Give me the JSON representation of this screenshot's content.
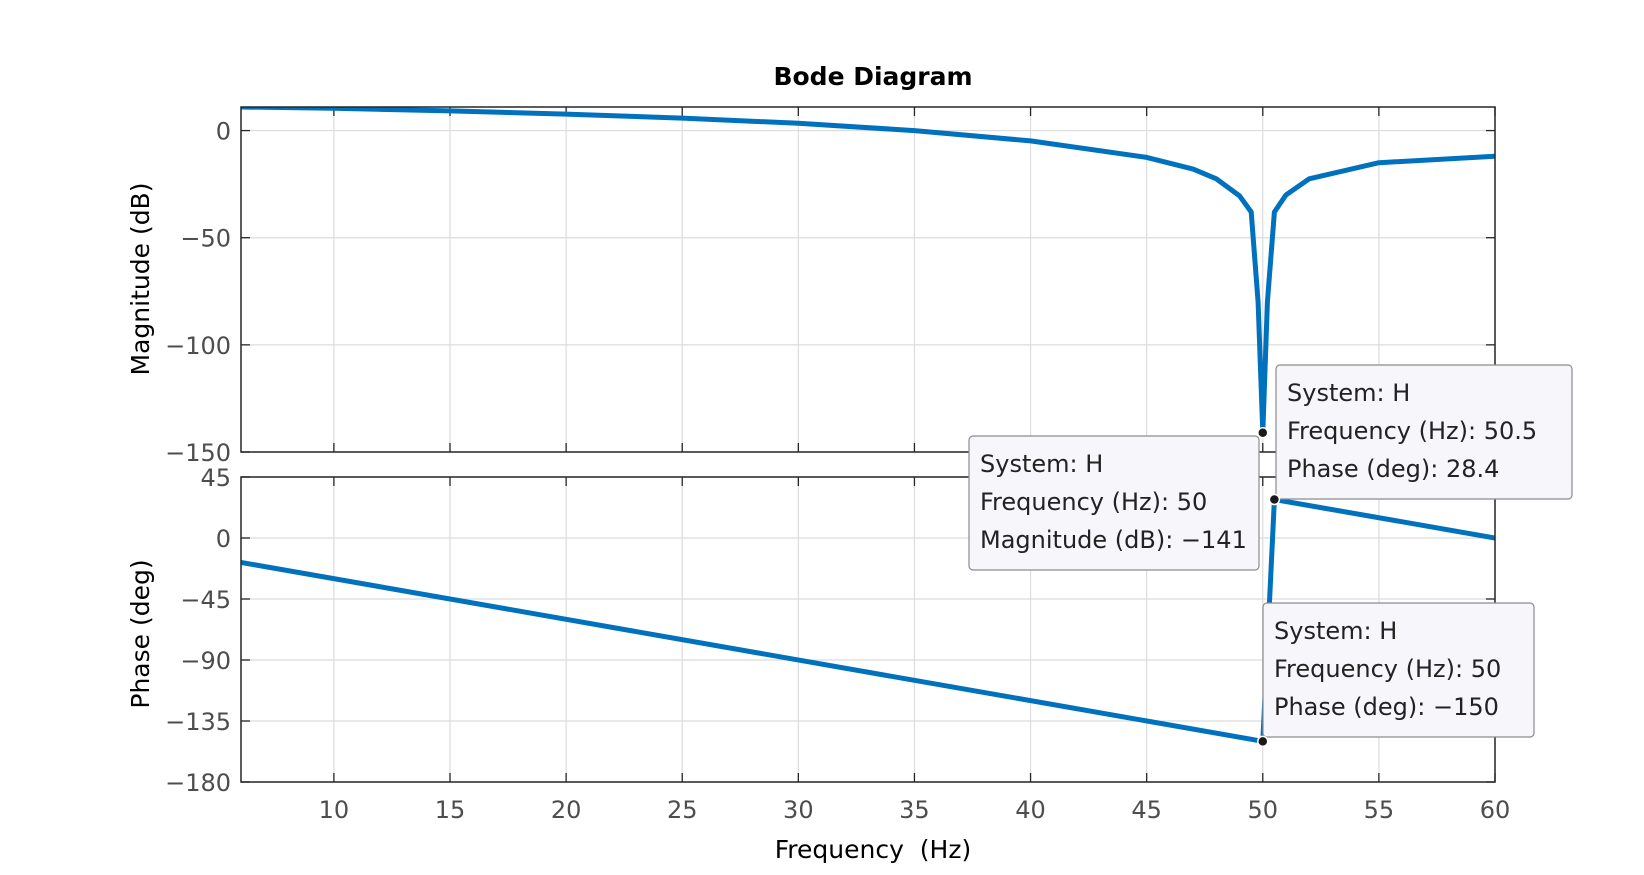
{
  "chart_data": {
    "type": "line",
    "title": "Bode Diagram",
    "xlabel": "Frequency  (Hz)",
    "xlim": [
      6,
      60
    ],
    "xticks": [
      10,
      15,
      20,
      25,
      30,
      35,
      40,
      45,
      50,
      55,
      60
    ],
    "grid": true,
    "panels": [
      {
        "name": "magnitude",
        "ylabel": "Magnitude (dB)",
        "ylim": [
          -150,
          11
        ],
        "yticks": [
          0,
          -50,
          -100,
          -150
        ],
        "series": [
          {
            "color": "#0072bd",
            "x": [
              6,
              10,
              15,
              20,
              25,
              30,
              35,
              40,
              45,
              47,
              48,
              49,
              49.5,
              49.8,
              50,
              50.2,
              50.5,
              51,
              52,
              55,
              60
            ],
            "y": [
              11,
              10.4,
              9.2,
              7.7,
              5.8,
              3.4,
              0,
              -4.8,
              -12.5,
              -18,
              -22.5,
              -30.5,
              -38,
              -80,
              -141,
              -80,
              -38,
              -30,
              -22.5,
              -15,
              -12
            ]
          }
        ]
      },
      {
        "name": "phase",
        "ylabel": "Phase (deg)",
        "ylim": [
          -180,
          45
        ],
        "yticks": [
          45,
          0,
          -45,
          -90,
          -135,
          -180
        ],
        "series": [
          {
            "color": "#0072bd",
            "x": [
              6,
              50,
              50.5,
              60
            ],
            "y": [
              -18,
              -150,
              28.4,
              0
            ]
          }
        ]
      }
    ],
    "datatips": [
      {
        "panel": "magnitude",
        "x": 50,
        "y": -141,
        "lines": [
          "System: H",
          "Frequency (Hz): 50",
          "Magnitude (dB): -141"
        ]
      },
      {
        "panel": "phase",
        "x": 50.5,
        "y": 28.4,
        "lines": [
          "System: H",
          "Frequency (Hz): 50.5",
          "Phase (deg): 28.4"
        ]
      },
      {
        "panel": "phase",
        "x": 50,
        "y": -150,
        "lines": [
          "System: H",
          "Frequency (Hz): 50",
          "Phase (deg): -150"
        ]
      }
    ]
  }
}
